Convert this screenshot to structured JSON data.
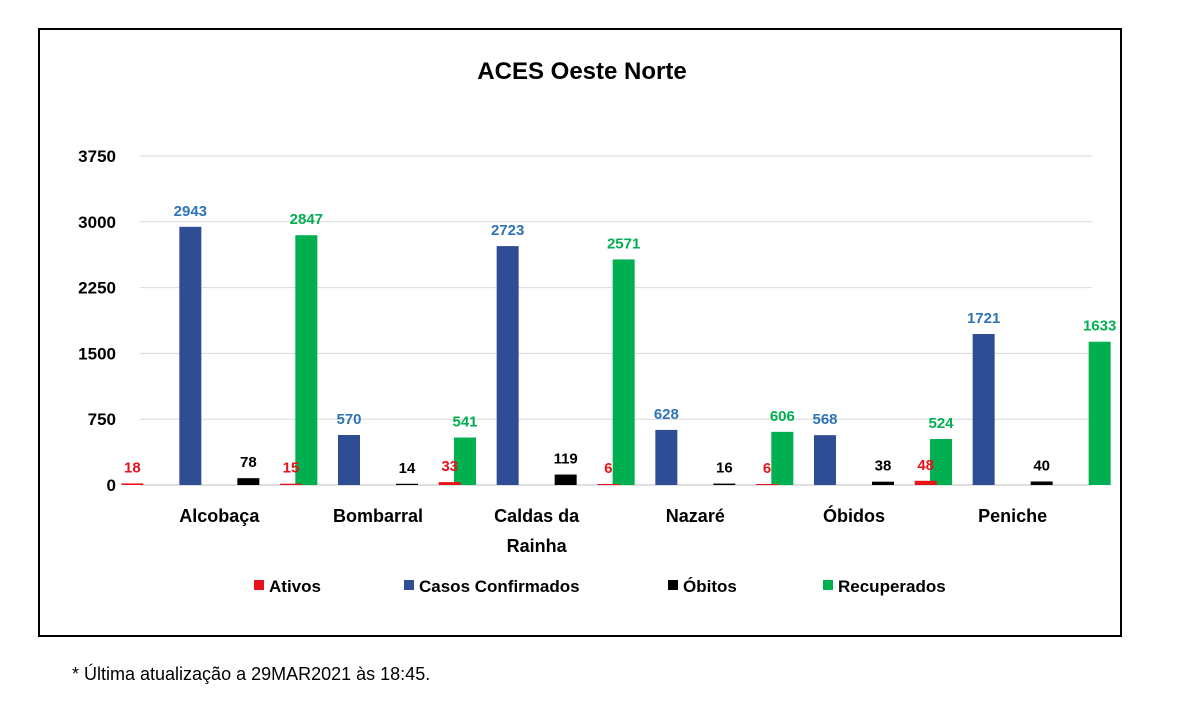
{
  "chart_data": {
    "type": "bar",
    "title": "ACES Oeste Norte",
    "xlabel": "",
    "ylabel": "",
    "ylim": [
      0,
      3750
    ],
    "yticks": [
      0,
      750,
      1500,
      2250,
      3000,
      3750
    ],
    "ytick_labels": [
      "0",
      "750",
      "1500",
      "2250",
      "3000",
      "3750"
    ],
    "grid": true,
    "legend_position": "bottom",
    "categories": [
      [
        "Alcobaça"
      ],
      [
        "Bombarral"
      ],
      [
        "Caldas da",
        "Rainha"
      ],
      [
        "Nazaré"
      ],
      [
        "Óbidos"
      ],
      [
        "Peniche"
      ]
    ],
    "series": [
      {
        "name": "Ativos",
        "color": "#e8121a",
        "label_color": "#e8121a",
        "values": [
          18,
          15,
          33,
          6,
          6,
          48
        ],
        "labels": [
          "18",
          "15",
          "33",
          "6",
          "6",
          "48"
        ]
      },
      {
        "name": "Casos Confirmados",
        "color": "#2e4d94",
        "label_color": "#2e74b5",
        "values": [
          2943,
          570,
          2723,
          628,
          568,
          1721
        ],
        "labels": [
          "2943",
          "570",
          "2723",
          "628",
          "568",
          "1721"
        ]
      },
      {
        "name": "Óbitos",
        "color": "#000000",
        "label_color": "#000000",
        "values": [
          78,
          14,
          119,
          16,
          38,
          40
        ],
        "labels": [
          "78",
          "14",
          "119",
          "16",
          "38",
          "40"
        ]
      },
      {
        "name": "Recuperados",
        "color": "#00b050",
        "label_color": "#00b050",
        "values": [
          2847,
          541,
          2571,
          606,
          524,
          1633
        ],
        "labels": [
          "2847",
          "541",
          "2571",
          "606",
          "524",
          "1633"
        ]
      }
    ]
  },
  "footnote": "* Última atualização a 29MAR2021 às 18:45."
}
